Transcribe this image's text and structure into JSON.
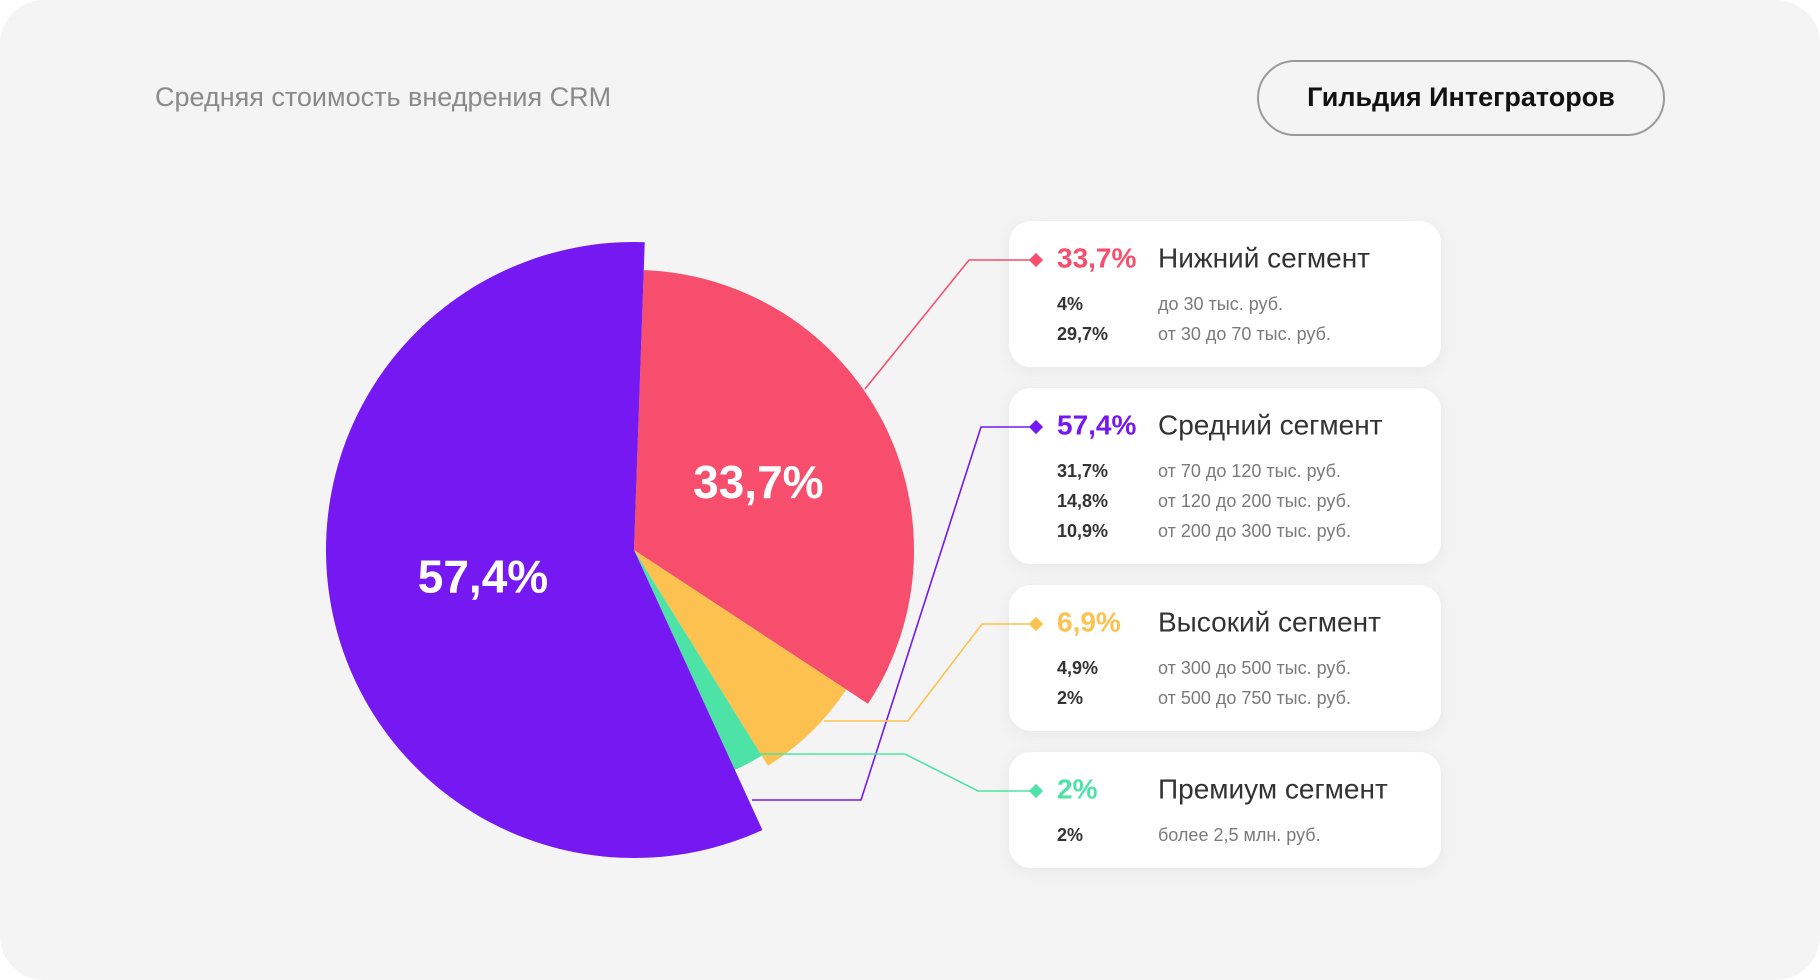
{
  "header": {
    "title": "Средняя стоимость внедрения CRM",
    "brand": "Гильдия Интеграторов"
  },
  "chart_data": {
    "type": "pie",
    "categories": [
      "Нижний сегмент",
      "Средний сегмент",
      "Высокий сегмент",
      "Премиум сегмент"
    ],
    "values": [
      33.7,
      57.4,
      6.9,
      2
    ],
    "value_labels": [
      "33,7%",
      "57,4%",
      "6,9%",
      "2%"
    ],
    "colors": [
      "#f64e6c",
      "#7518f2",
      "#fdc150",
      "#4ee3a6"
    ]
  },
  "segments": [
    {
      "rows": [
        [
          "4%",
          "до 30 тыс. руб."
        ],
        [
          "29,7%",
          "от 30 до 70 тыс. руб."
        ]
      ]
    },
    {
      "rows": [
        [
          "31,7%",
          "от 70 до 120 тыс. руб."
        ],
        [
          "14,8%",
          "от 120 до 200 тыс. руб."
        ],
        [
          "10,9%",
          "от 200 до 300 тыс. руб."
        ]
      ]
    },
    {
      "rows": [
        [
          "4,9%",
          "от 300 до 500 тыс. руб."
        ],
        [
          "2%",
          "от 500 до 750 тыс. руб."
        ]
      ]
    },
    {
      "rows": [
        [
          "2%",
          "более 2,5 млн. руб."
        ]
      ]
    }
  ]
}
